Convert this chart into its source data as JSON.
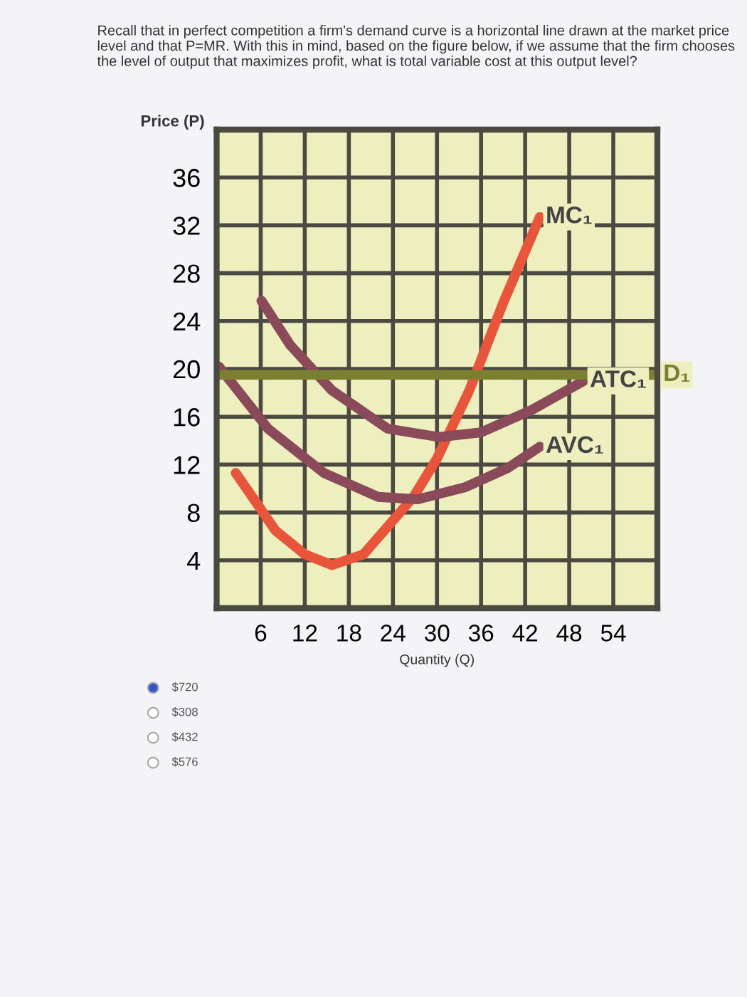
{
  "chart_data": {
    "type": "line",
    "title": "Recall that in perfect competition a firm's demand curve is a horizontal line drawn at the market price level and that P=MR. With this in mind, based on the figure below, if we assume that the firm chooses the level of output that maximizes profit, what is total variable cost at this output level?",
    "xlabel": "Quantity (Q)",
    "ylabel": "Price (P)",
    "xlim": [
      0,
      60
    ],
    "ylim": [
      0,
      40
    ],
    "xticks": [
      6,
      12,
      18,
      24,
      30,
      36,
      42,
      48,
      54
    ],
    "yticks": [
      4,
      8,
      12,
      16,
      20,
      24,
      28,
      32,
      36
    ],
    "grid": true,
    "legend": false,
    "series": [
      {
        "name": "MC₁",
        "color": "#e8553a",
        "x": [
          2.6,
          8,
          12,
          15.7,
          20,
          26.8,
          30,
          34.4,
          39,
          44
        ],
        "values": [
          11.3,
          6.5,
          4.5,
          3.6,
          4.5,
          9.3,
          12.5,
          18.2,
          25.5,
          32.7
        ]
      },
      {
        "name": "ATC₁",
        "color": "#8a4a5a",
        "x": [
          6.1,
          10,
          15.7,
          23.3,
          30.3,
          36,
          43,
          50
        ],
        "values": [
          25.7,
          22,
          18.2,
          15,
          14.3,
          14.7,
          16.6,
          19
        ]
      },
      {
        "name": "AVC₁",
        "color": "#8a4a5a",
        "x": [
          0.3,
          7,
          14.6,
          22,
          27.4,
          33.8,
          39.6,
          44
        ],
        "values": [
          20.2,
          15,
          11.3,
          9.3,
          9.1,
          10.1,
          11.7,
          13.5
        ]
      },
      {
        "name": "D₁",
        "color": "#7a8030",
        "x": [
          0,
          60
        ],
        "values": [
          19.5,
          19.5
        ]
      }
    ],
    "annotations": [
      "$720",
      "$308",
      "$432",
      "$576"
    ]
  }
}
